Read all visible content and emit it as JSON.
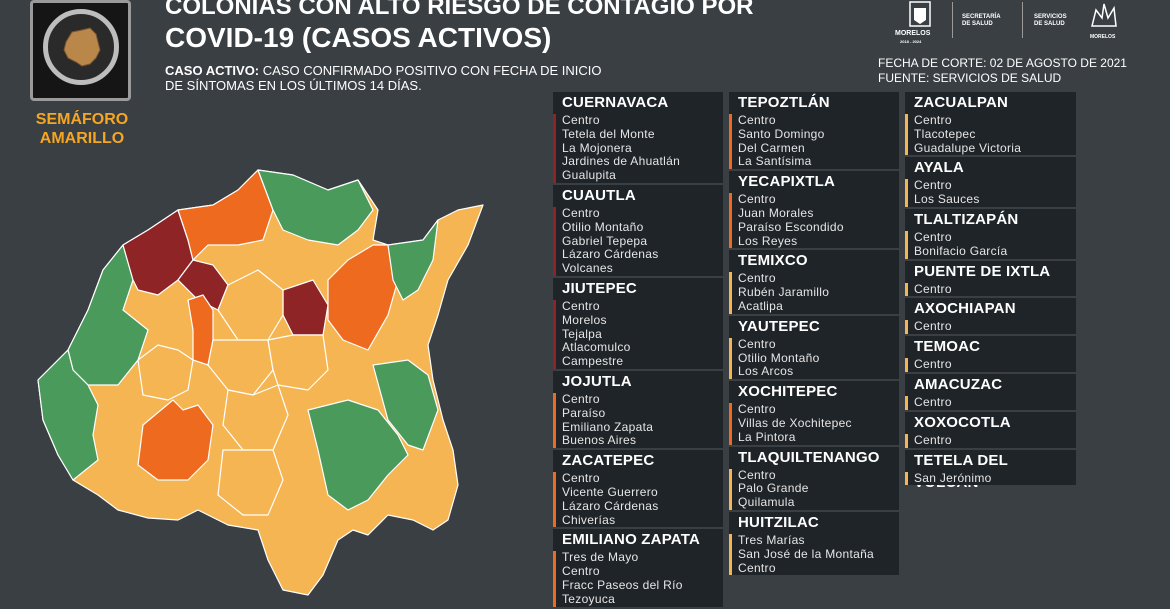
{
  "header": {
    "title_line1": "COLONIAS CON ALTO RIESGO DE CONTAGIO POR",
    "title_line2": "COVID-19 (CASOS ACTIVOS)",
    "definition_label": "CASO ACTIVO:",
    "definition_text": "CASO CONFIRMADO POSITIVO CON FECHA DE INICIO DE SÍNTOMAS EN LOS ÚLTIMOS 14 DÍAS.",
    "fecha_corte": "FECHA DE CORTE: 02 DE AGOSTO DE 2021",
    "fuente": "FUENTE: SERVICIOS DE SALUD"
  },
  "semaforo": {
    "label_line1": "SEMÁFORO",
    "label_line2": "AMARILLO",
    "color": "#f5a623"
  },
  "logos": {
    "morelos": "MORELOS",
    "morelos_sub": "2018 - 2024",
    "secretaria_1": "SECRETARÍA",
    "secretaria_2": "DE SALUD",
    "servicios_1": "SERVICIOS",
    "servicios_2": "DE SALUD",
    "ssm": "MORELOS"
  },
  "legend_colors": {
    "rojo": "#8e2426",
    "naranja": "#ee6a1f",
    "amarillo": "#f5b552",
    "verde": "#4a9a5c",
    "panel": "#1f2428",
    "background": "#3a3f43"
  },
  "columns": [
    [
      {
        "name": "CUERNAVACA",
        "color": "#8e2426",
        "colonias": [
          "Centro",
          "Tetela del Monte",
          "La Mojonera",
          "Jardines de Ahuatlán",
          "Gualupita"
        ]
      },
      {
        "name": "CUAUTLA",
        "color": "#8e2426",
        "colonias": [
          "Centro",
          "Otilio Montaño",
          "Gabriel Tepepa",
          "Lázaro Cárdenas",
          "Volcanes"
        ]
      },
      {
        "name": "JIUTEPEC",
        "color": "#8e2426",
        "colonias": [
          "Centro",
          "Morelos",
          "Tejalpa",
          "Atlacomulco",
          "Campestre"
        ]
      },
      {
        "name": "JOJUTLA",
        "color": "#ee6a1f",
        "colonias": [
          "Centro",
          "Paraíso",
          "Emiliano Zapata",
          "Buenos Aires"
        ]
      },
      {
        "name": "ZACATEPEC",
        "color": "#ee6a1f",
        "colonias": [
          "Centro",
          "Vicente Guerrero",
          "Lázaro Cárdenas",
          "Chiverías"
        ]
      },
      {
        "name": "EMILIANO ZAPATA",
        "color": "#ee6a1f",
        "colonias": [
          "Tres de Mayo",
          "Centro",
          "Fracc Paseos del Río",
          "Tezoyuca"
        ]
      }
    ],
    [
      {
        "name": "TEPOZTLÁN",
        "color": "#ee6a1f",
        "colonias": [
          "Centro",
          "Santo Domingo",
          "Del Carmen",
          "La Santísima"
        ]
      },
      {
        "name": "YECAPIXTLA",
        "color": "#ee6a1f",
        "colonias": [
          "Centro",
          "Juan Morales",
          "Paraíso Escondido",
          "Los Reyes"
        ]
      },
      {
        "name": "TEMIXCO",
        "color": "#f5b552",
        "colonias": [
          "Centro",
          "Rubén Jaramillo",
          "Acatlipa"
        ]
      },
      {
        "name": "YAUTEPEC",
        "color": "#f5b552",
        "colonias": [
          "Centro",
          "Otilio Montaño",
          "Los Arcos"
        ]
      },
      {
        "name": "XOCHITEPEC",
        "color": "#ee6a1f",
        "colonias": [
          "Centro",
          "Villas de Xochitepec",
          "La Pintora"
        ]
      },
      {
        "name": "TLAQUILTENANGO",
        "color": "#f5b552",
        "colonias": [
          "Centro",
          "Palo Grande",
          "Quilamula"
        ]
      },
      {
        "name": "HUITZILAC",
        "color": "#f5b552",
        "colonias": [
          "Tres Marías",
          "San José de la Montaña",
          "Centro"
        ]
      }
    ],
    [
      {
        "name": "ZACUALPAN",
        "color": "#f5b552",
        "colonias": [
          "Centro",
          "Tlacotepec",
          "Guadalupe Victoria"
        ]
      },
      {
        "name": "AYALA",
        "color": "#f5b552",
        "colonias": [
          "Centro",
          "Los Sauces"
        ]
      },
      {
        "name": "TLALTIZAPÁN",
        "color": "#f5b552",
        "colonias": [
          "Centro",
          "Bonifacio García"
        ]
      },
      {
        "name": "PUENTE DE IXTLA",
        "color": "#f5b552",
        "colonias": [
          "Centro"
        ]
      },
      {
        "name": "AXOCHIAPAN",
        "color": "#f5b552",
        "colonias": [
          "Centro"
        ]
      },
      {
        "name": "TEMOAC",
        "color": "#f5b552",
        "colonias": [
          "Centro"
        ]
      },
      {
        "name": "AMACUZAC",
        "color": "#f5b552",
        "colonias": [
          "Centro"
        ]
      },
      {
        "name": "XOXOCOTLA",
        "color": "#f5b552",
        "colonias": [
          "Centro"
        ]
      },
      {
        "name": "TETELA DEL VOLCÁN",
        "color": "#f5b552",
        "colonias": [
          "San Jerónimo"
        ]
      }
    ]
  ]
}
